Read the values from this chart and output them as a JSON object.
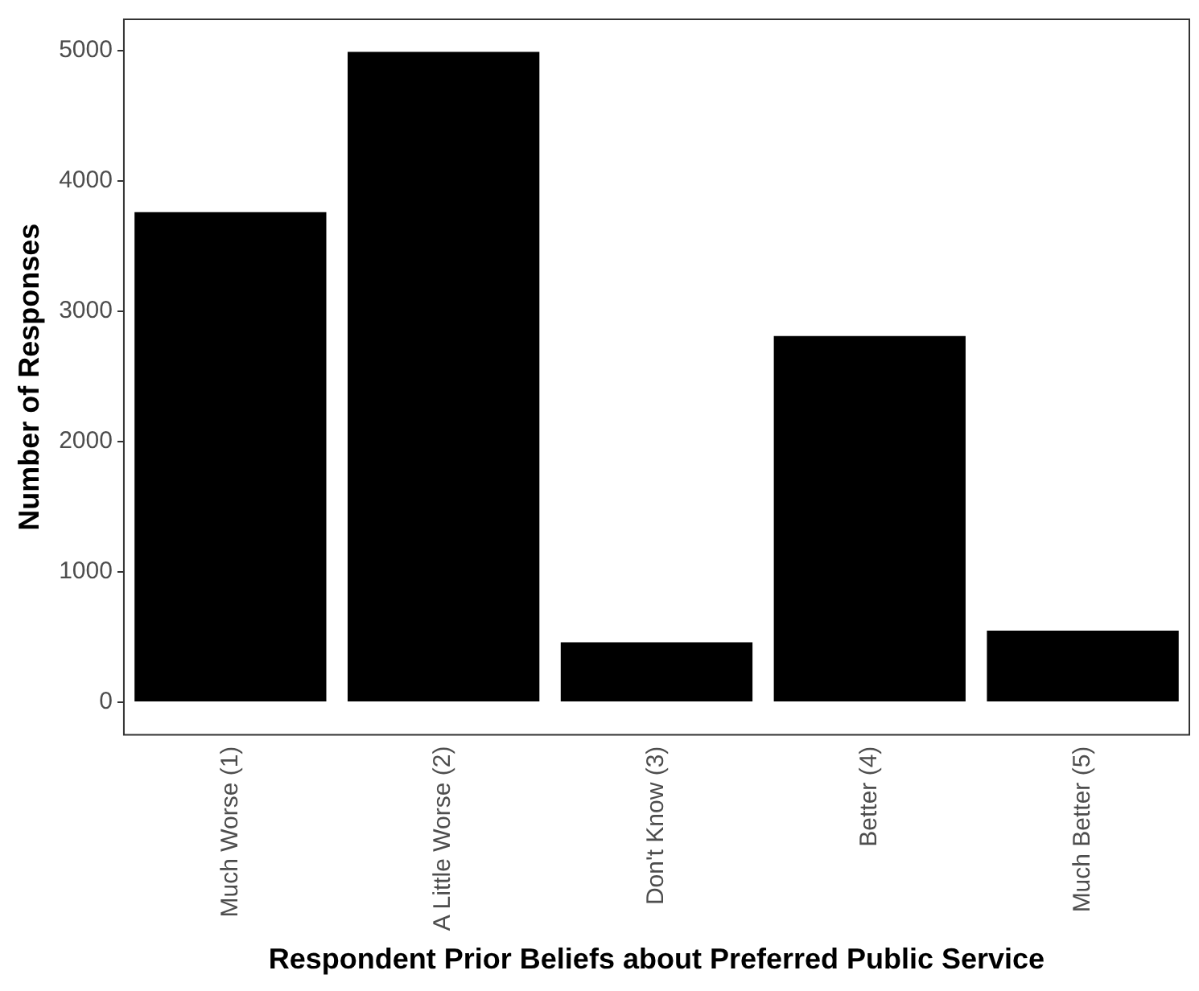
{
  "chart_data": {
    "type": "bar",
    "xlabel": "Respondent Prior Beliefs about Preferred Public Service",
    "ylabel": "Number of Responses",
    "categories": [
      "Much Worse (1)",
      "A Little Worse (2)",
      "Don't Know (3)",
      "Better (4)",
      "Much Better (5)"
    ],
    "values": [
      3760,
      4990,
      460,
      2810,
      550
    ],
    "color": "#000000",
    "ylim": [
      -250,
      5240
    ],
    "yticks": [
      0,
      1000,
      2000,
      3000,
      4000,
      5000
    ],
    "grid": false,
    "legend": false
  }
}
